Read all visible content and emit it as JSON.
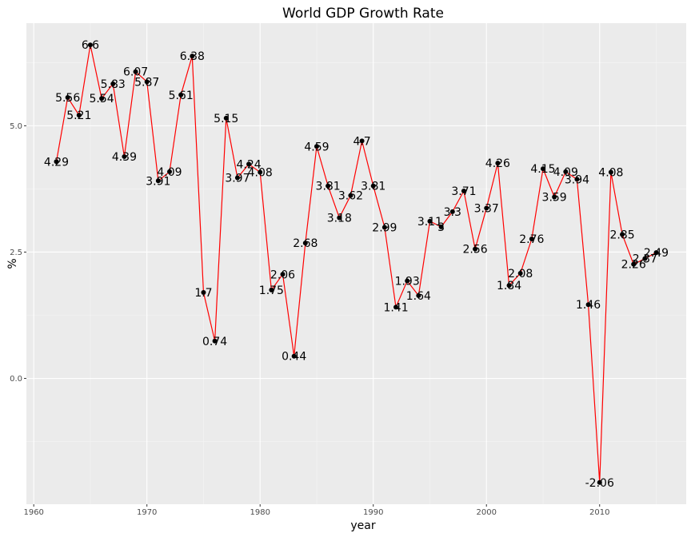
{
  "chart_data": {
    "type": "line",
    "title": "World GDP Growth Rate",
    "xlabel": "year",
    "ylabel": "%",
    "x": [
      1962,
      1963,
      1964,
      1965,
      1966,
      1967,
      1968,
      1969,
      1970,
      1971,
      1972,
      1973,
      1974,
      1975,
      1976,
      1977,
      1978,
      1979,
      1980,
      1981,
      1982,
      1983,
      1984,
      1985,
      1986,
      1987,
      1988,
      1989,
      1990,
      1991,
      1992,
      1993,
      1994,
      1995,
      1996,
      1997,
      1998,
      1999,
      2000,
      2001,
      2002,
      2003,
      2004,
      2005,
      2006,
      2007,
      2008,
      2009,
      2010,
      2011,
      2012,
      2013,
      2014,
      2015
    ],
    "values": [
      4.29,
      5.56,
      5.21,
      6.6,
      5.54,
      5.83,
      4.39,
      6.07,
      5.87,
      3.91,
      4.09,
      5.61,
      6.38,
      1.7,
      0.74,
      5.15,
      3.97,
      4.24,
      4.08,
      1.75,
      2.06,
      0.44,
      2.68,
      4.59,
      3.81,
      3.18,
      3.62,
      4.7,
      3.81,
      2.99,
      1.41,
      1.93,
      1.64,
      3.11,
      3,
      3.3,
      3.71,
      2.56,
      3.37,
      4.26,
      1.84,
      2.08,
      2.76,
      4.15,
      3.59,
      4.09,
      3.94,
      1.46,
      -2.06,
      4.08,
      2.85,
      2.26,
      2.37,
      2.49
    ],
    "labels": [
      "4.29",
      "5.56",
      "5.21",
      "6.6",
      "5.54",
      "5.83",
      "4.39",
      "6.07",
      "5.87",
      "3.91",
      "4.09",
      "5.61",
      "6.38",
      "1.7",
      "0.74",
      "5.15",
      "3.97",
      "4.24",
      "4.08",
      "1.75",
      "2.06",
      "0.44",
      "2.68",
      "4.59",
      "3.81",
      "3.18",
      "3.62",
      "4.7",
      "3.81",
      "2.99",
      "1.41",
      "1.93",
      "1.64",
      "3.11",
      "3",
      "3.3",
      "3.71",
      "2.56",
      "3.37",
      "4.26",
      "1.84",
      "2.08",
      "2.76",
      "4.15",
      "3.59",
      "4.09",
      "3.94",
      "1.46",
      "-2.06",
      "4.08",
      "2.85",
      "2.26",
      "2.37",
      "2.49"
    ],
    "xticks": [
      1960,
      1970,
      1980,
      1990,
      2000,
      2010
    ],
    "xtick_labels": [
      "1960",
      "1970",
      "1980",
      "1990",
      "2000",
      "2010"
    ],
    "yticks": [
      0,
      2.5,
      5
    ],
    "ytick_labels": [
      "0.0",
      "2.5",
      "5.0"
    ],
    "xlim": [
      1959.35,
      2017.65
    ],
    "ylim": [
      -2.49,
      7.03
    ],
    "grid": true,
    "colors": {
      "line": "#ff0000",
      "point": "#000000",
      "panel": "#ebebeb",
      "grid_major": "#ffffff",
      "grid_minor": "#f5f5f5"
    }
  }
}
